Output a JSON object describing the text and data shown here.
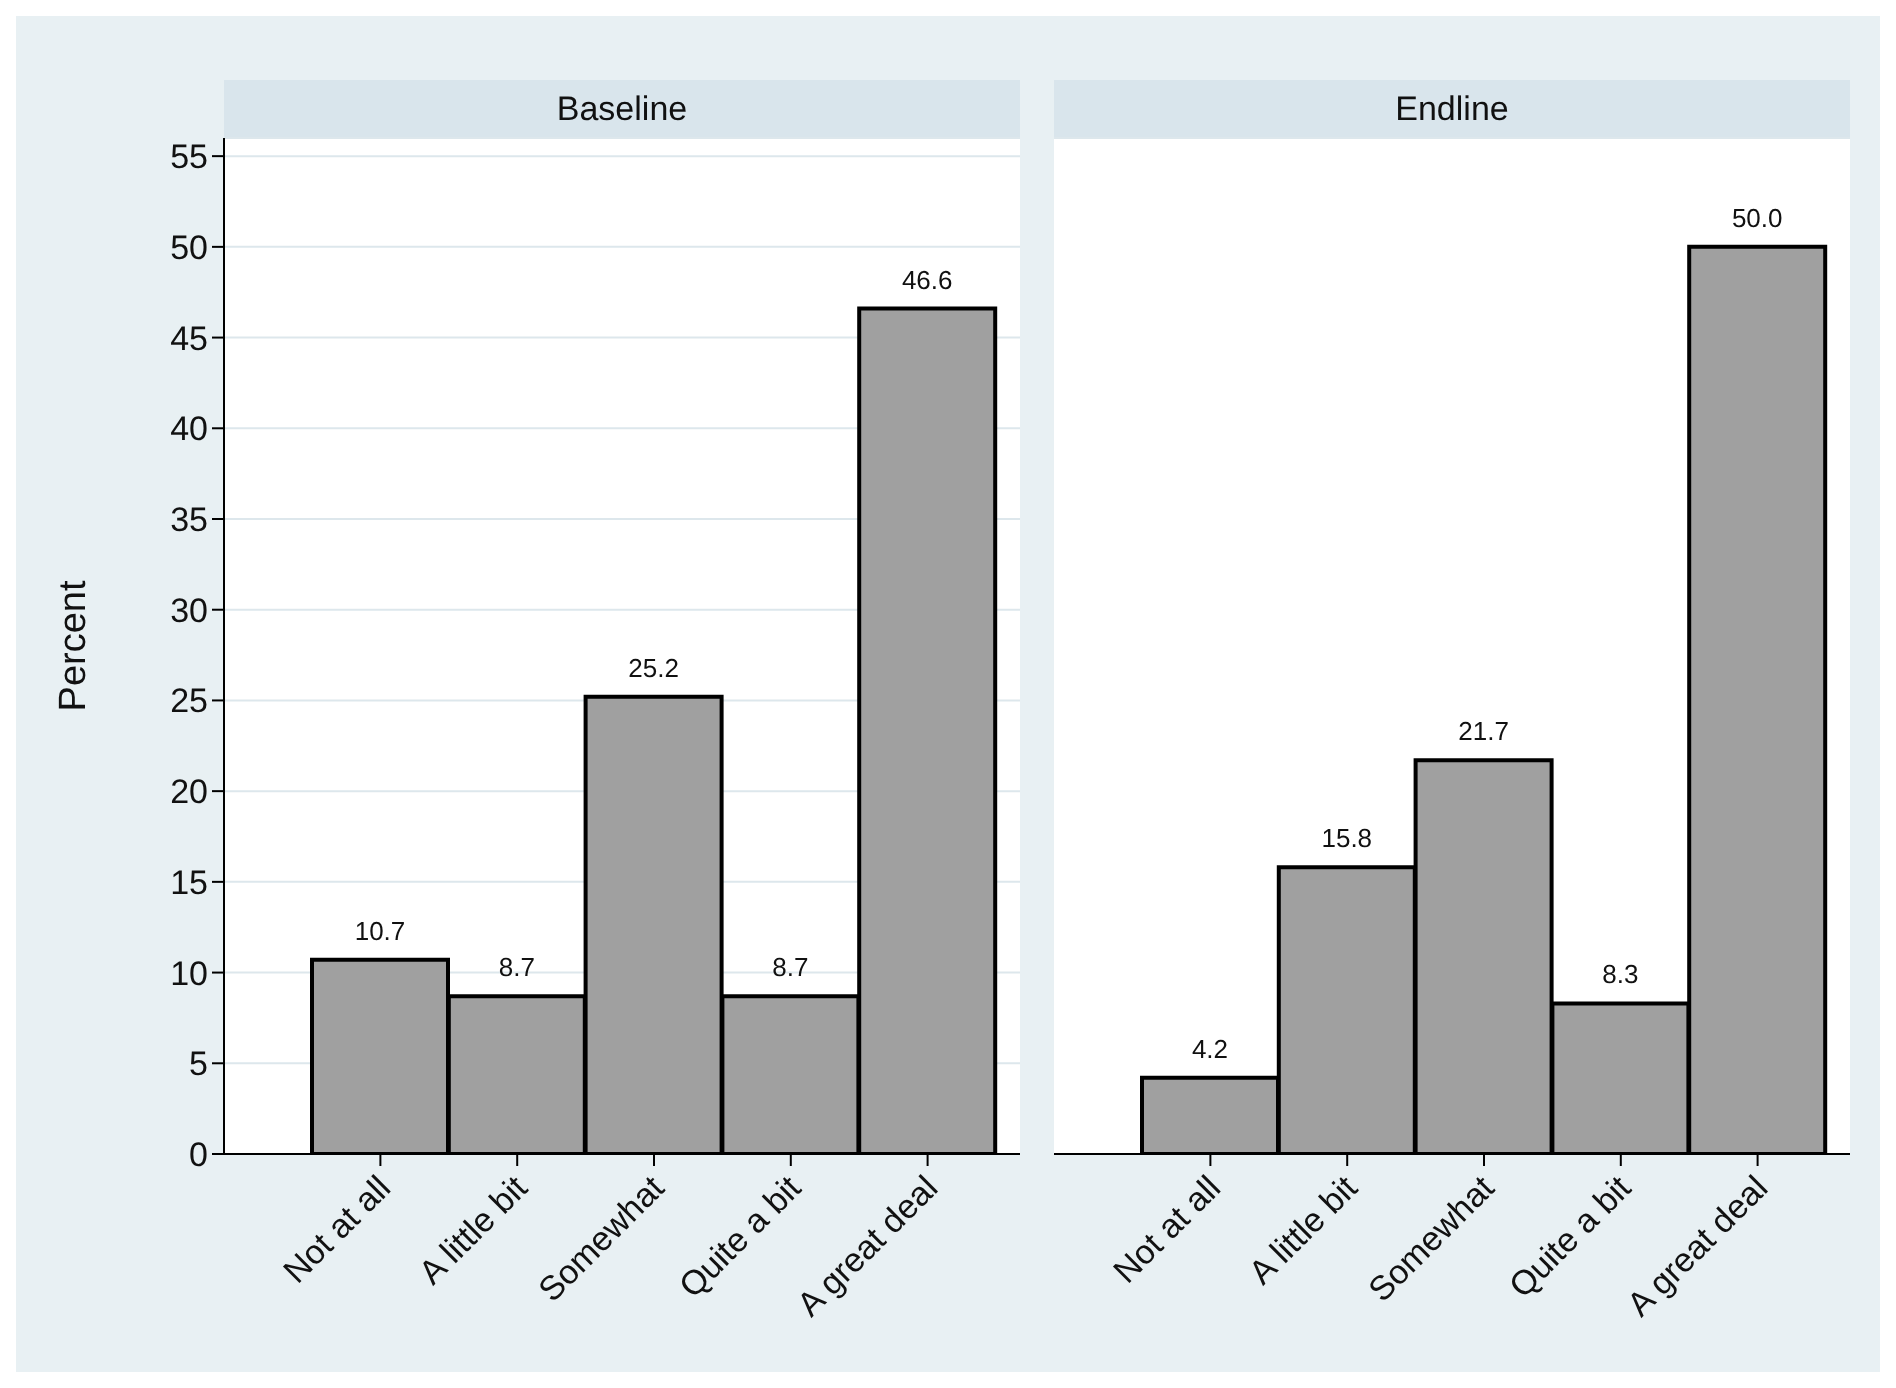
{
  "chart_data": [
    {
      "type": "bar",
      "title": "Baseline",
      "ylabel": "Percent",
      "categories": [
        "Not at all",
        "A little bit",
        "Somewhat",
        "Quite a bit",
        "A great deal"
      ],
      "values": [
        10.7,
        8.7,
        25.2,
        8.7,
        46.6
      ],
      "color": "#a0a0a0",
      "ylim": [
        0,
        56
      ],
      "yticks": [
        0,
        5,
        10,
        15,
        20,
        25,
        30,
        35,
        40,
        45,
        50,
        55
      ],
      "grid": "y",
      "value_labels": [
        "10.7",
        "8.7",
        "25.2",
        "8.7",
        "46.6"
      ],
      "legend": false
    },
    {
      "type": "bar",
      "title": "Endline",
      "categories": [
        "Not at all",
        "A little bit",
        "Somewhat",
        "Quite a bit",
        "A great deal"
      ],
      "values": [
        4.2,
        15.8,
        21.7,
        8.3,
        50.0
      ],
      "color": "#a0a0a0",
      "ylim": [
        0,
        56
      ],
      "yticks": [
        0,
        5,
        10,
        15,
        20,
        25,
        30,
        35,
        40,
        45,
        50,
        55
      ],
      "grid": "y",
      "value_labels": [
        "4.2",
        "15.8",
        "21.7",
        "8.3",
        "50.0"
      ],
      "legend": false,
      "tick_labels": "x"
    }
  ]
}
